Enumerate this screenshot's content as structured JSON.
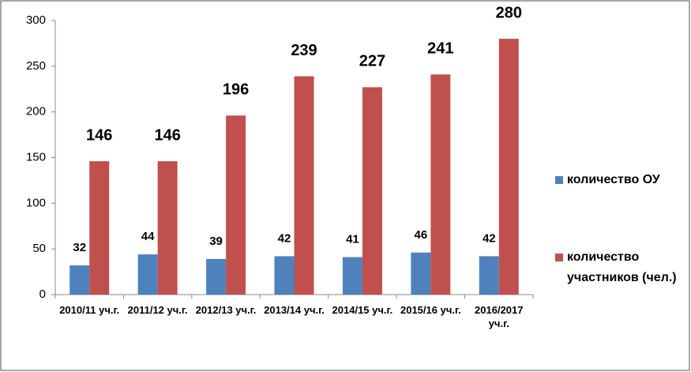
{
  "chart_data": {
    "type": "bar",
    "categories": [
      "2010/11 уч.г.",
      "2011/12 уч.г.",
      "2012/13 уч.г.",
      "2013/14 уч.г.",
      "2014/15 уч.г.",
      "2015/16 уч.г.",
      "2016/2017 уч.г."
    ],
    "series": [
      {
        "name": "количество ОУ",
        "color": "#4f81bd",
        "values": [
          32,
          44,
          39,
          42,
          41,
          46,
          42
        ]
      },
      {
        "name": "количество участников (чел.)",
        "color": "#c0504d",
        "values": [
          146,
          146,
          196,
          239,
          227,
          241,
          280
        ]
      }
    ],
    "ylim": [
      0,
      300
    ],
    "yticks": [
      0,
      50,
      100,
      150,
      200,
      250,
      300
    ],
    "grid": false,
    "legend": "right"
  }
}
